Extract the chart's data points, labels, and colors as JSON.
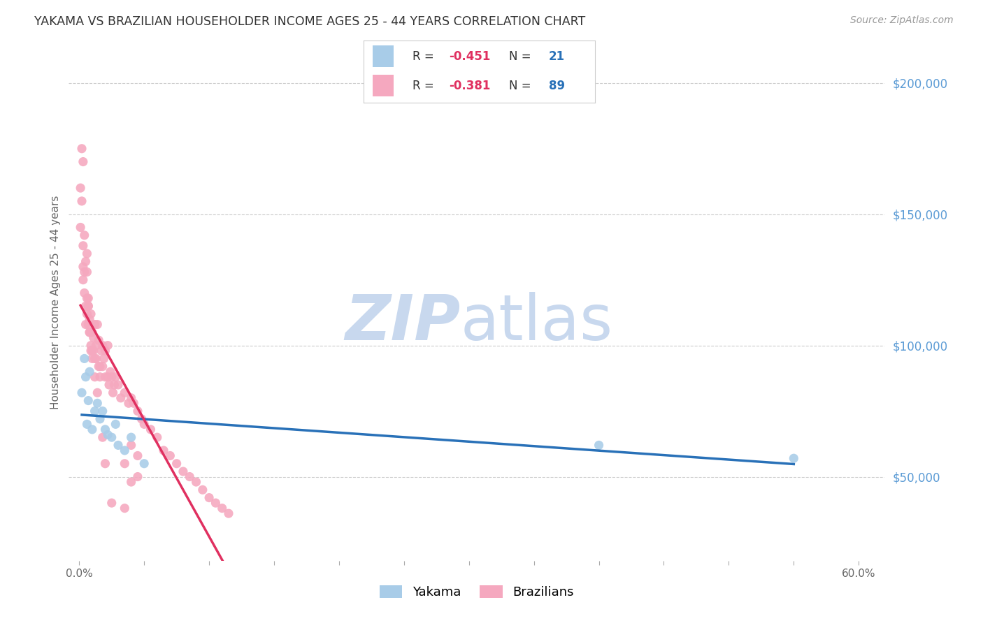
{
  "title": "YAKAMA VS BRAZILIAN HOUSEHOLDER INCOME AGES 25 - 44 YEARS CORRELATION CHART",
  "source": "Source: ZipAtlas.com",
  "ylabel": "Householder Income Ages 25 - 44 years",
  "yakama_R": -0.451,
  "yakama_N": 21,
  "brazilians_R": -0.381,
  "brazilians_N": 89,
  "yakama_color": "#a8cce8",
  "yakama_line_color": "#2971b8",
  "braz_color": "#f5a8bf",
  "braz_line_color": "#e03060",
  "xlim": [
    -0.008,
    0.62
  ],
  "ylim": [
    18000,
    215000
  ],
  "xticks": [
    0.0,
    0.05,
    0.1,
    0.15,
    0.2,
    0.25,
    0.3,
    0.35,
    0.4,
    0.45,
    0.5,
    0.55,
    0.6
  ],
  "xtick_labels_show": {
    "0": "0.0%",
    "12": "60.0%"
  },
  "yticks_right": [
    50000,
    100000,
    150000,
    200000
  ],
  "ytick_labels_right": [
    "$50,000",
    "$100,000",
    "$150,000",
    "$200,000"
  ],
  "bg_color": "#ffffff",
  "grid_color": "#cccccc",
  "title_color": "#333333",
  "source_color": "#999999",
  "watermark_zip_color": "#c8d8ee",
  "watermark_atlas_color": "#c8d8ee",
  "legend_R_color": "#e03060",
  "legend_N_color": "#2971b8",
  "yakama_x": [
    0.002,
    0.004,
    0.005,
    0.006,
    0.007,
    0.008,
    0.01,
    0.012,
    0.014,
    0.016,
    0.018,
    0.02,
    0.022,
    0.025,
    0.028,
    0.03,
    0.035,
    0.04,
    0.05,
    0.4,
    0.55
  ],
  "yakama_y": [
    82000,
    95000,
    88000,
    70000,
    79000,
    90000,
    68000,
    75000,
    78000,
    72000,
    75000,
    68000,
    66000,
    65000,
    70000,
    62000,
    60000,
    65000,
    55000,
    62000,
    57000
  ],
  "braz_x": [
    0.001,
    0.001,
    0.002,
    0.002,
    0.003,
    0.003,
    0.003,
    0.004,
    0.004,
    0.005,
    0.005,
    0.006,
    0.006,
    0.006,
    0.007,
    0.007,
    0.007,
    0.008,
    0.008,
    0.009,
    0.009,
    0.01,
    0.01,
    0.011,
    0.011,
    0.012,
    0.012,
    0.013,
    0.013,
    0.014,
    0.015,
    0.015,
    0.016,
    0.016,
    0.017,
    0.018,
    0.018,
    0.019,
    0.02,
    0.02,
    0.022,
    0.022,
    0.023,
    0.024,
    0.025,
    0.026,
    0.027,
    0.028,
    0.03,
    0.032,
    0.035,
    0.038,
    0.04,
    0.042,
    0.045,
    0.048,
    0.05,
    0.055,
    0.06,
    0.065,
    0.07,
    0.075,
    0.08,
    0.085,
    0.09,
    0.095,
    0.1,
    0.105,
    0.11,
    0.115,
    0.003,
    0.004,
    0.005,
    0.006,
    0.007,
    0.008,
    0.009,
    0.01,
    0.012,
    0.014,
    0.018,
    0.02,
    0.025,
    0.035,
    0.04,
    0.045,
    0.035,
    0.04,
    0.045
  ],
  "braz_y": [
    160000,
    145000,
    175000,
    155000,
    130000,
    125000,
    138000,
    128000,
    120000,
    115000,
    108000,
    118000,
    112000,
    135000,
    118000,
    108000,
    115000,
    105000,
    110000,
    112000,
    100000,
    105000,
    98000,
    103000,
    98000,
    95000,
    108000,
    100000,
    95000,
    108000,
    92000,
    102000,
    92000,
    88000,
    98000,
    92000,
    100000,
    95000,
    88000,
    98000,
    88000,
    100000,
    85000,
    90000,
    88000,
    82000,
    85000,
    88000,
    85000,
    80000,
    82000,
    78000,
    80000,
    78000,
    75000,
    72000,
    70000,
    68000,
    65000,
    60000,
    58000,
    55000,
    52000,
    50000,
    48000,
    45000,
    42000,
    40000,
    38000,
    36000,
    170000,
    142000,
    132000,
    128000,
    115000,
    105000,
    98000,
    95000,
    88000,
    82000,
    65000,
    55000,
    40000,
    38000,
    48000,
    58000,
    55000,
    62000,
    50000
  ]
}
